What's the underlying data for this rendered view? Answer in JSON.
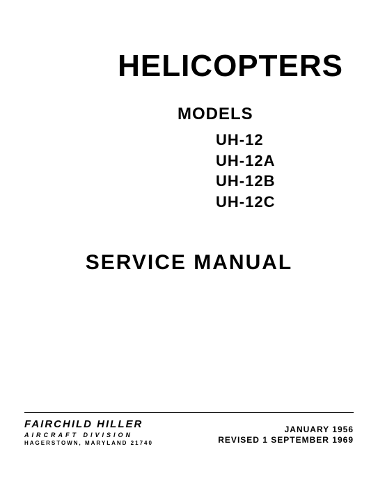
{
  "title": "HELICOPTERS",
  "title_fontsize": 44,
  "models_heading": "MODELS",
  "models_heading_fontsize": 24,
  "models": [
    "UH-12",
    "UH-12A",
    "UH-12B",
    "UH-12C"
  ],
  "model_fontsize": 22,
  "service_manual": "SERVICE  MANUAL",
  "service_manual_fontsize": 30,
  "company": {
    "name": "FAIRCHILD HILLER",
    "name_fontsize": 15,
    "division": "AIRCRAFT DIVISION",
    "division_fontsize": 9,
    "address": "HAGERSTOWN, MARYLAND 21740",
    "address_fontsize": 8
  },
  "dates": {
    "issued": "JANUARY 1956",
    "revised": "REVISED 1 SEPTEMBER 1969",
    "fontsize": 12
  },
  "colors": {
    "text": "#000000",
    "background": "#ffffff",
    "rule": "#000000"
  }
}
